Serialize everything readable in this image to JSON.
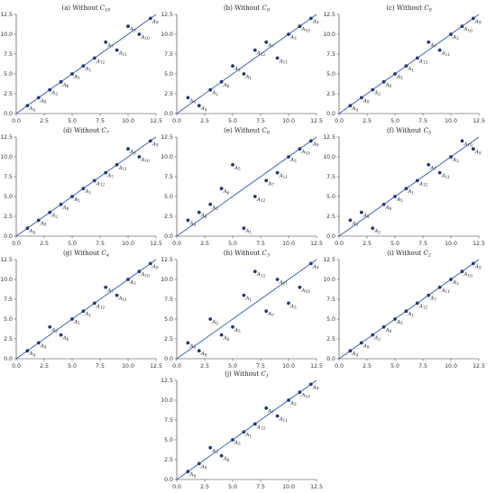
{
  "colors": {
    "line": "#2f5aa8",
    "point": "#1f3b78",
    "axis": "#333333"
  },
  "chart_data": [
    {
      "type": "scatter",
      "title": "(a) Without C10",
      "title_parts": [
        "(a) Without ",
        "C",
        "10"
      ],
      "xlim": [
        0,
        12.5
      ],
      "ylim": [
        0,
        12.5
      ],
      "xticks": [
        "0.0",
        "2.5",
        "5.0",
        "7.5",
        "10.0",
        "12.5"
      ],
      "yticks": [
        "0.0",
        "2.5",
        "5.0",
        "7.5",
        "10.0",
        "12.5"
      ],
      "reference_line": "y = x",
      "points": [
        {
          "label": "A",
          "sub": "4",
          "x": 1,
          "y": 1
        },
        {
          "label": "A",
          "sub": "8",
          "x": 2,
          "y": 2
        },
        {
          "label": "A",
          "sub": "2",
          "x": 3,
          "y": 3
        },
        {
          "label": "A",
          "sub": "6",
          "x": 4,
          "y": 4
        },
        {
          "label": "A",
          "sub": "5",
          "x": 5,
          "y": 5
        },
        {
          "label": "A",
          "sub": "1",
          "x": 6,
          "y": 6
        },
        {
          "label": "A",
          "sub": "12",
          "x": 7,
          "y": 7
        },
        {
          "label": "A",
          "sub": "7",
          "x": 8,
          "y": 9
        },
        {
          "label": "A",
          "sub": "11",
          "x": 9,
          "y": 8
        },
        {
          "label": "A",
          "sub": "3",
          "x": 10,
          "y": 11
        },
        {
          "label": "A",
          "sub": "10",
          "x": 11,
          "y": 10
        },
        {
          "label": "A",
          "sub": "9",
          "x": 12,
          "y": 12
        }
      ]
    },
    {
      "type": "scatter",
      "title": "(b) Without C9",
      "title_parts": [
        "(b) Without ",
        "C",
        "9"
      ],
      "xlim": [
        0,
        12.5
      ],
      "ylim": [
        0,
        12.5
      ],
      "xticks": [
        "0.0",
        "2.5",
        "5.0",
        "7.5",
        "10.0",
        "12.5"
      ],
      "yticks": [
        "0.0",
        "2.5",
        "5.0",
        "7.5",
        "10.0",
        "12.5"
      ],
      "reference_line": "y = x",
      "points": [
        {
          "label": "A",
          "sub": "4",
          "x": 1,
          "y": 2
        },
        {
          "label": "A",
          "sub": "8",
          "x": 2,
          "y": 1
        },
        {
          "label": "A",
          "sub": "2",
          "x": 3,
          "y": 3
        },
        {
          "label": "A",
          "sub": "6",
          "x": 4,
          "y": 4
        },
        {
          "label": "A",
          "sub": "5",
          "x": 5,
          "y": 6
        },
        {
          "label": "A",
          "sub": "1",
          "x": 6,
          "y": 5
        },
        {
          "label": "A",
          "sub": "12",
          "x": 7,
          "y": 8
        },
        {
          "label": "A",
          "sub": "7",
          "x": 8,
          "y": 9
        },
        {
          "label": "A",
          "sub": "11",
          "x": 9,
          "y": 7
        },
        {
          "label": "A",
          "sub": "3",
          "x": 10,
          "y": 10
        },
        {
          "label": "A",
          "sub": "10",
          "x": 11,
          "y": 11
        },
        {
          "label": "A",
          "sub": "9",
          "x": 12,
          "y": 12
        }
      ]
    },
    {
      "type": "scatter",
      "title": "(c) Without C8",
      "title_parts": [
        "(c) Without ",
        "C",
        "8"
      ],
      "xlim": [
        0,
        12.5
      ],
      "ylim": [
        0,
        12.5
      ],
      "xticks": [
        "0.0",
        "2.5",
        "5.0",
        "7.5",
        "10.0",
        "12.5"
      ],
      "yticks": [
        "0.0",
        "2.5",
        "5.0",
        "7.5",
        "10.0",
        "12.5"
      ],
      "reference_line": "y = x",
      "points": [
        {
          "label": "A",
          "sub": "4",
          "x": 1,
          "y": 1
        },
        {
          "label": "A",
          "sub": "8",
          "x": 2,
          "y": 2
        },
        {
          "label": "A",
          "sub": "2",
          "x": 3,
          "y": 3
        },
        {
          "label": "A",
          "sub": "6",
          "x": 4,
          "y": 4
        },
        {
          "label": "A",
          "sub": "5",
          "x": 5,
          "y": 5
        },
        {
          "label": "A",
          "sub": "1",
          "x": 6,
          "y": 6
        },
        {
          "label": "A",
          "sub": "12",
          "x": 7,
          "y": 7
        },
        {
          "label": "A",
          "sub": "7",
          "x": 8,
          "y": 9
        },
        {
          "label": "A",
          "sub": "11",
          "x": 9,
          "y": 8
        },
        {
          "label": "A",
          "sub": "3",
          "x": 10,
          "y": 10
        },
        {
          "label": "A",
          "sub": "10",
          "x": 11,
          "y": 11
        },
        {
          "label": "A",
          "sub": "9",
          "x": 12,
          "y": 12
        }
      ]
    },
    {
      "type": "scatter",
      "title": "(d) Without C7",
      "title_parts": [
        "(d) Without ",
        "C",
        "7"
      ],
      "xlim": [
        0,
        12.5
      ],
      "ylim": [
        0,
        12.5
      ],
      "xticks": [
        "0.0",
        "2.5",
        "5.0",
        "7.5",
        "10.0",
        "12.5"
      ],
      "yticks": [
        "0.0",
        "2.5",
        "5.0",
        "7.5",
        "10.0",
        "12.5"
      ],
      "reference_line": "y = x",
      "points": [
        {
          "label": "A",
          "sub": "4",
          "x": 1,
          "y": 1
        },
        {
          "label": "A",
          "sub": "8",
          "x": 2,
          "y": 2
        },
        {
          "label": "A",
          "sub": "2",
          "x": 3,
          "y": 3
        },
        {
          "label": "A",
          "sub": "6",
          "x": 4,
          "y": 4
        },
        {
          "label": "A",
          "sub": "5",
          "x": 5,
          "y": 5
        },
        {
          "label": "A",
          "sub": "1",
          "x": 6,
          "y": 6
        },
        {
          "label": "A",
          "sub": "12",
          "x": 7,
          "y": 7
        },
        {
          "label": "A",
          "sub": "7",
          "x": 8,
          "y": 8
        },
        {
          "label": "A",
          "sub": "11",
          "x": 9,
          "y": 9
        },
        {
          "label": "A",
          "sub": "3",
          "x": 10,
          "y": 11
        },
        {
          "label": "A",
          "sub": "10",
          "x": 11,
          "y": 10
        },
        {
          "label": "A",
          "sub": "9",
          "x": 12,
          "y": 12
        }
      ]
    },
    {
      "type": "scatter",
      "title": "(e) Without C6",
      "title_parts": [
        "(e) Without ",
        "C",
        "6"
      ],
      "xlim": [
        0,
        12.5
      ],
      "ylim": [
        0,
        12.5
      ],
      "xticks": [
        "0.0",
        "2.5",
        "5.0",
        "7.5",
        "10.0",
        "12.5"
      ],
      "yticks": [
        "0.0",
        "2.5",
        "5.0",
        "7.5",
        "10.0",
        "12.5"
      ],
      "reference_line": "y = x",
      "points": [
        {
          "label": "A",
          "sub": "4",
          "x": 1,
          "y": 2
        },
        {
          "label": "A",
          "sub": "8",
          "x": 2,
          "y": 3
        },
        {
          "label": "A",
          "sub": "2",
          "x": 3,
          "y": 4
        },
        {
          "label": "A",
          "sub": "6",
          "x": 4,
          "y": 6
        },
        {
          "label": "A",
          "sub": "5",
          "x": 5,
          "y": 9
        },
        {
          "label": "A",
          "sub": "1",
          "x": 6,
          "y": 1
        },
        {
          "label": "A",
          "sub": "12",
          "x": 7,
          "y": 5
        },
        {
          "label": "A",
          "sub": "7",
          "x": 8,
          "y": 7
        },
        {
          "label": "A",
          "sub": "11",
          "x": 9,
          "y": 8
        },
        {
          "label": "A",
          "sub": "3",
          "x": 10,
          "y": 10
        },
        {
          "label": "A",
          "sub": "10",
          "x": 11,
          "y": 11
        },
        {
          "label": "A",
          "sub": "9",
          "x": 12,
          "y": 12
        }
      ]
    },
    {
      "type": "scatter",
      "title": "(f) Without C5",
      "title_parts": [
        "(f) Without ",
        "C",
        "5"
      ],
      "xlim": [
        0,
        12.5
      ],
      "ylim": [
        0,
        12.5
      ],
      "xticks": [
        "0.0",
        "2.5",
        "5.0",
        "7.5",
        "10.0",
        "12.5"
      ],
      "yticks": [
        "0.0",
        "2.5",
        "5.0",
        "7.5",
        "10.0",
        "12.5"
      ],
      "reference_line": "y = x",
      "points": [
        {
          "label": "A",
          "sub": "4",
          "x": 1,
          "y": 2
        },
        {
          "label": "A",
          "sub": "8",
          "x": 2,
          "y": 3
        },
        {
          "label": "A",
          "sub": "2",
          "x": 3,
          "y": 1
        },
        {
          "label": "A",
          "sub": "6",
          "x": 4,
          "y": 4
        },
        {
          "label": "A",
          "sub": "5",
          "x": 5,
          "y": 5
        },
        {
          "label": "A",
          "sub": "1",
          "x": 6,
          "y": 6
        },
        {
          "label": "A",
          "sub": "12",
          "x": 7,
          "y": 7
        },
        {
          "label": "A",
          "sub": "7",
          "x": 8,
          "y": 9
        },
        {
          "label": "A",
          "sub": "11",
          "x": 9,
          "y": 8
        },
        {
          "label": "A",
          "sub": "3",
          "x": 10,
          "y": 10
        },
        {
          "label": "A",
          "sub": "10",
          "x": 11,
          "y": 12
        },
        {
          "label": "A",
          "sub": "9",
          "x": 12,
          "y": 11
        }
      ]
    },
    {
      "type": "scatter",
      "title": "(g) Without C4",
      "title_parts": [
        "(g) Without ",
        "C",
        "4"
      ],
      "xlim": [
        0,
        12.5
      ],
      "ylim": [
        0,
        12.5
      ],
      "xticks": [
        "0.0",
        "2.5",
        "5.0",
        "7.5",
        "10.0",
        "12.5"
      ],
      "yticks": [
        "0.0",
        "2.5",
        "5.0",
        "7.5",
        "10.0",
        "12.5"
      ],
      "reference_line": "y = x",
      "points": [
        {
          "label": "A",
          "sub": "4",
          "x": 1,
          "y": 1
        },
        {
          "label": "A",
          "sub": "8",
          "x": 2,
          "y": 2
        },
        {
          "label": "A",
          "sub": "2",
          "x": 3,
          "y": 4
        },
        {
          "label": "A",
          "sub": "6",
          "x": 4,
          "y": 3
        },
        {
          "label": "A",
          "sub": "5",
          "x": 5,
          "y": 5
        },
        {
          "label": "A",
          "sub": "1",
          "x": 6,
          "y": 6
        },
        {
          "label": "A",
          "sub": "12",
          "x": 7,
          "y": 7
        },
        {
          "label": "A",
          "sub": "7",
          "x": 8,
          "y": 9
        },
        {
          "label": "A",
          "sub": "11",
          "x": 9,
          "y": 8
        },
        {
          "label": "A",
          "sub": "3",
          "x": 10,
          "y": 10
        },
        {
          "label": "A",
          "sub": "10",
          "x": 11,
          "y": 11
        },
        {
          "label": "A",
          "sub": "9",
          "x": 12,
          "y": 12
        }
      ]
    },
    {
      "type": "scatter",
      "title": "(h) Without C3",
      "title_parts": [
        "(h) Without ",
        "C",
        "3"
      ],
      "xlim": [
        0,
        12.5
      ],
      "ylim": [
        0,
        12.5
      ],
      "xticks": [
        "0.0",
        "2.5",
        "5.0",
        "7.5",
        "10.0",
        "12.5"
      ],
      "yticks": [
        "0.0",
        "2.5",
        "5.0",
        "7.5",
        "10.0",
        "12.5"
      ],
      "reference_line": "y = x",
      "points": [
        {
          "label": "A",
          "sub": "4",
          "x": 1,
          "y": 2
        },
        {
          "label": "A",
          "sub": "8",
          "x": 2,
          "y": 1
        },
        {
          "label": "A",
          "sub": "2",
          "x": 3,
          "y": 5
        },
        {
          "label": "A",
          "sub": "6",
          "x": 4,
          "y": 3
        },
        {
          "label": "A",
          "sub": "5",
          "x": 5,
          "y": 4
        },
        {
          "label": "A",
          "sub": "1",
          "x": 6,
          "y": 8
        },
        {
          "label": "A",
          "sub": "12",
          "x": 7,
          "y": 11
        },
        {
          "label": "A",
          "sub": "7",
          "x": 8,
          "y": 6
        },
        {
          "label": "A",
          "sub": "11",
          "x": 9,
          "y": 10
        },
        {
          "label": "A",
          "sub": "3",
          "x": 10,
          "y": 7
        },
        {
          "label": "A",
          "sub": "10",
          "x": 11,
          "y": 9
        },
        {
          "label": "A",
          "sub": "9",
          "x": 12,
          "y": 12
        }
      ]
    },
    {
      "type": "scatter",
      "title": "(i) Without C2",
      "title_parts": [
        "(i) Without ",
        "C",
        "2"
      ],
      "xlim": [
        0,
        12.5
      ],
      "ylim": [
        0,
        12.5
      ],
      "xticks": [
        "0.0",
        "2.5",
        "5.0",
        "7.5",
        "10.0",
        "12.5"
      ],
      "yticks": [
        "0.0",
        "2.5",
        "5.0",
        "7.5",
        "10.0",
        "12.5"
      ],
      "reference_line": "y = x",
      "points": [
        {
          "label": "A",
          "sub": "4",
          "x": 1,
          "y": 1
        },
        {
          "label": "A",
          "sub": "8",
          "x": 2,
          "y": 2
        },
        {
          "label": "A",
          "sub": "2",
          "x": 3,
          "y": 3
        },
        {
          "label": "A",
          "sub": "6",
          "x": 4,
          "y": 4
        },
        {
          "label": "A",
          "sub": "5",
          "x": 5,
          "y": 5
        },
        {
          "label": "A",
          "sub": "1",
          "x": 6,
          "y": 6
        },
        {
          "label": "A",
          "sub": "12",
          "x": 7,
          "y": 7
        },
        {
          "label": "A",
          "sub": "7",
          "x": 8,
          "y": 8
        },
        {
          "label": "A",
          "sub": "11",
          "x": 9,
          "y": 9
        },
        {
          "label": "A",
          "sub": "3",
          "x": 10,
          "y": 10
        },
        {
          "label": "A",
          "sub": "10",
          "x": 11,
          "y": 11
        },
        {
          "label": "A",
          "sub": "9",
          "x": 12,
          "y": 12
        }
      ]
    },
    {
      "type": "scatter",
      "title": "(j) Without C1",
      "title_parts": [
        "(j) Without ",
        "C",
        "1"
      ],
      "xlim": [
        0,
        12.5
      ],
      "ylim": [
        0,
        12.5
      ],
      "xticks": [
        "0.0",
        "2.5",
        "5.0",
        "7.5",
        "10.0",
        "12.5"
      ],
      "yticks": [
        "0.0",
        "2.5",
        "5.0",
        "7.5",
        "10.0",
        "12.5"
      ],
      "reference_line": "y = x",
      "points": [
        {
          "label": "A",
          "sub": "4",
          "x": 1,
          "y": 1
        },
        {
          "label": "A",
          "sub": "8",
          "x": 2,
          "y": 2
        },
        {
          "label": "A",
          "sub": "2",
          "x": 3,
          "y": 4
        },
        {
          "label": "A",
          "sub": "6",
          "x": 4,
          "y": 3
        },
        {
          "label": "A",
          "sub": "5",
          "x": 5,
          "y": 5
        },
        {
          "label": "A",
          "sub": "1",
          "x": 6,
          "y": 6
        },
        {
          "label": "A",
          "sub": "12",
          "x": 7,
          "y": 7
        },
        {
          "label": "A",
          "sub": "7",
          "x": 8,
          "y": 9
        },
        {
          "label": "A",
          "sub": "11",
          "x": 9,
          "y": 8
        },
        {
          "label": "A",
          "sub": "3",
          "x": 10,
          "y": 10
        },
        {
          "label": "A",
          "sub": "10",
          "x": 11,
          "y": 11
        },
        {
          "label": "A",
          "sub": "9",
          "x": 12,
          "y": 12
        }
      ]
    }
  ]
}
